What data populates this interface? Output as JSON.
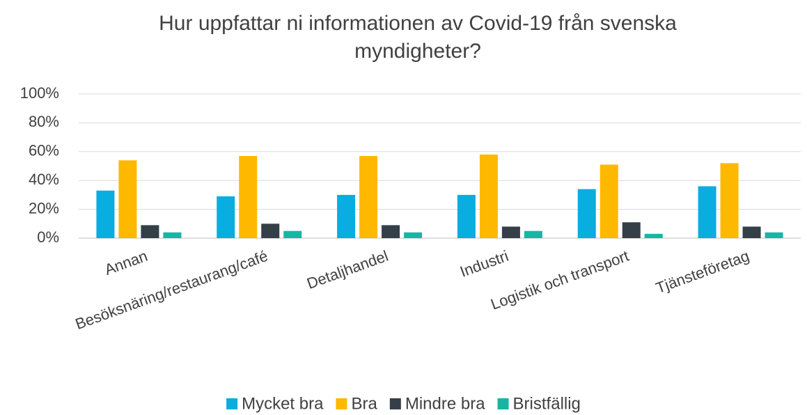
{
  "chart_data": {
    "type": "bar",
    "title": "Hur uppfattar ni informationen av Covid-19 från svenska myndigheter?",
    "categories": [
      "Annan",
      "Besöksnäring/restaurang/café",
      "Detaljhandel",
      "Industri",
      "Logistik och transport",
      "Tjänsteföretag"
    ],
    "series": [
      {
        "name": "Mycket bra",
        "color": "#0aaddf",
        "values": [
          33,
          29,
          30,
          30,
          34,
          36
        ]
      },
      {
        "name": "Bra",
        "color": "#ffb800",
        "values": [
          54,
          57,
          57,
          58,
          51,
          52
        ]
      },
      {
        "name": "Mindre bra",
        "color": "#343f48",
        "values": [
          9,
          10,
          9,
          8,
          11,
          8
        ]
      },
      {
        "name": "Bristfällig",
        "color": "#17b6a4",
        "values": [
          4,
          5,
          4,
          5,
          3,
          4
        ]
      }
    ],
    "ylim": [
      0,
      100
    ],
    "yticks": [
      {
        "value": 0,
        "label": "0%"
      },
      {
        "value": 20,
        "label": "20%"
      },
      {
        "value": 40,
        "label": "40%"
      },
      {
        "value": 60,
        "label": "60%"
      },
      {
        "value": 80,
        "label": "80%"
      },
      {
        "value": 100,
        "label": "100%"
      }
    ],
    "grid": true,
    "legend": "bottom"
  }
}
